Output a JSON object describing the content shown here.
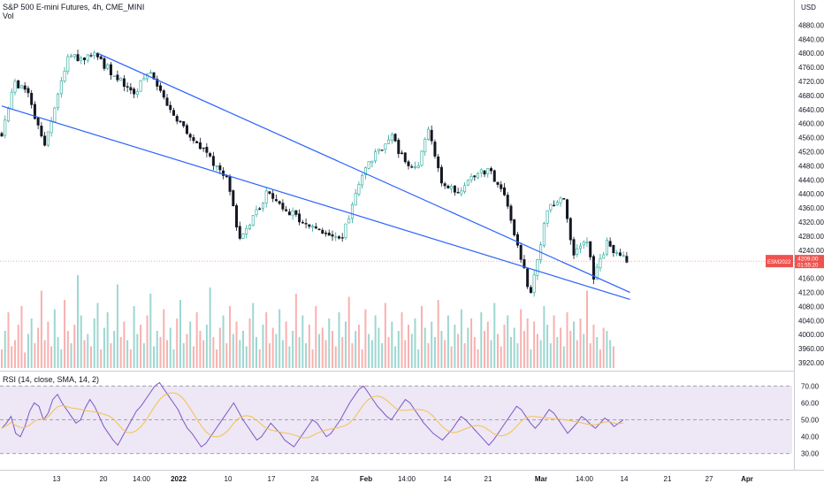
{
  "header": {
    "title": "S&P 500 E-mini Futures, 4h, CME_MINI",
    "volume_label": "Vol"
  },
  "price_axis": {
    "currency": "USD",
    "ticks": [
      "4880.00",
      "4840.00",
      "4800.00",
      "4760.00",
      "4720.00",
      "4680.00",
      "4640.00",
      "4600.00",
      "4560.00",
      "4520.00",
      "4480.00",
      "4440.00",
      "4400.00",
      "4360.00",
      "4320.00",
      "4280.00",
      "4240.00",
      "4200.00",
      "4160.00",
      "4120.00",
      "4080.00",
      "4040.00",
      "4000.00",
      "3960.00",
      "3920.00"
    ],
    "range": [
      3905,
      4896
    ]
  },
  "last_price_tag": {
    "symbol": "ESM2022",
    "price": "4209.00",
    "countdown": "01:55:20",
    "value": 4209,
    "color": "#ef5350"
  },
  "rsi_panel": {
    "label": "RSI (14, close, SMA, 14, 2)",
    "ticks": [
      "70.00",
      "60.00",
      "50.00",
      "40.00",
      "30.00"
    ],
    "upper_band": 70,
    "middle": 50,
    "lower_band": 30,
    "range": [
      22,
      78
    ]
  },
  "time_axis": {
    "labels": [
      "13",
      "20",
      "14:00",
      "2022",
      "10",
      "17",
      "24",
      "Feb",
      "14:00",
      "14",
      "21",
      "Mar",
      "14:00",
      "14",
      "21",
      "27",
      "Apr"
    ]
  },
  "colors": {
    "up": "#26a69a",
    "down": "#ef5350",
    "channel": "#2962ff",
    "rsi_line": "#7e57c2",
    "rsi_ma": "#f5c14a",
    "rsi_band_fill": "#ede7f6"
  },
  "chart_data": {
    "type": "candlestick",
    "interval": "4h",
    "channel_lines": [
      {
        "from": {
          "x": 0,
          "y": 4650
        },
        "to": {
          "x": 190,
          "y": 4100
        }
      },
      {
        "from": {
          "x": 29,
          "y": 4800
        },
        "to": {
          "x": 190,
          "y": 4120
        }
      }
    ],
    "price_path": {
      "x": [
        0,
        4,
        8,
        13,
        20,
        28,
        40,
        45,
        50,
        58,
        68,
        72,
        80,
        94,
        103,
        110,
        118,
        122,
        126,
        129,
        133,
        138,
        145,
        148,
        152,
        156,
        160,
        165,
        170,
        173,
        177,
        179,
        183,
        189
      ],
      "close": [
        4570,
        4720,
        4680,
        4540,
        4785,
        4790,
        4690,
        4750,
        4650,
        4550,
        4450,
        4265,
        4400,
        4300,
        4280,
        4480,
        4560,
        4490,
        4480,
        4590,
        4440,
        4400,
        4470,
        4460,
        4400,
        4250,
        4110,
        4360,
        4390,
        4225,
        4270,
        4160,
        4260,
        4209
      ]
    },
    "volume": {
      "values": [
        6,
        12,
        18,
        7,
        9,
        14,
        20,
        5,
        11,
        16,
        8,
        13,
        25,
        9,
        15,
        7,
        19,
        10,
        6,
        22,
        12,
        8,
        14,
        30,
        17,
        9,
        11,
        7,
        16,
        21,
        6,
        13,
        18,
        8,
        12,
        27,
        10,
        15,
        9,
        6,
        20,
        11,
        14,
        8,
        17,
        24,
        7,
        12,
        10,
        19,
        9,
        13,
        6,
        16,
        22,
        8,
        11,
        15,
        7,
        18,
        12,
        9,
        14,
        26,
        10,
        6,
        13,
        17,
        8,
        20,
        11,
        15,
        9,
        12,
        7,
        16,
        21,
        10,
        6,
        14,
        18,
        8,
        13,
        11,
        19,
        9,
        15,
        7,
        12,
        24,
        10,
        17,
        8,
        14,
        6,
        20,
        11,
        13,
        9,
        16,
        12,
        7,
        18,
        10,
        15,
        23,
        8,
        12,
        14,
        6,
        19,
        11,
        9,
        17,
        13,
        8,
        21,
        10,
        15,
        7,
        12,
        18,
        9,
        14,
        11,
        16,
        6,
        20,
        13,
        8,
        15,
        10,
        22,
        12,
        9,
        17,
        7,
        14,
        11,
        19,
        8,
        13,
        16,
        10,
        6,
        18,
        12,
        15,
        9,
        21,
        11,
        7,
        14,
        17,
        10,
        13,
        8,
        19,
        12,
        16,
        6,
        15,
        11,
        9,
        20,
        14,
        8,
        17,
        10,
        13,
        7,
        18,
        12,
        15,
        9,
        16,
        11,
        25,
        8,
        14,
        10,
        6,
        13,
        12,
        9,
        7
      ]
    },
    "rsi": {
      "values": [
        45,
        48,
        52,
        42,
        40,
        46,
        55,
        60,
        58,
        50,
        54,
        62,
        65,
        60,
        56,
        52,
        48,
        50,
        57,
        62,
        58,
        52,
        46,
        42,
        38,
        35,
        40,
        45,
        50,
        55,
        58,
        62,
        66,
        70,
        72,
        68,
        64,
        60,
        56,
        50,
        45,
        42,
        38,
        34,
        36,
        40,
        44,
        48,
        52,
        56,
        60,
        55,
        50,
        46,
        42,
        38,
        40,
        44,
        48,
        45,
        42,
        38,
        36,
        34,
        38,
        42,
        46,
        50,
        48,
        44,
        40,
        42,
        46,
        50,
        55,
        60,
        64,
        68,
        70,
        66,
        62,
        58,
        55,
        52,
        50,
        54,
        58,
        62,
        60,
        56,
        52,
        48,
        45,
        42,
        40,
        38,
        41,
        44,
        48,
        52,
        50,
        47,
        44,
        41,
        38,
        35,
        38,
        42,
        46,
        50,
        54,
        58,
        56,
        52,
        48,
        45,
        48,
        52,
        56,
        54,
        50,
        46,
        42,
        45,
        48,
        52,
        50,
        47,
        45,
        48,
        51,
        49,
        46,
        48,
        50
      ]
    }
  }
}
